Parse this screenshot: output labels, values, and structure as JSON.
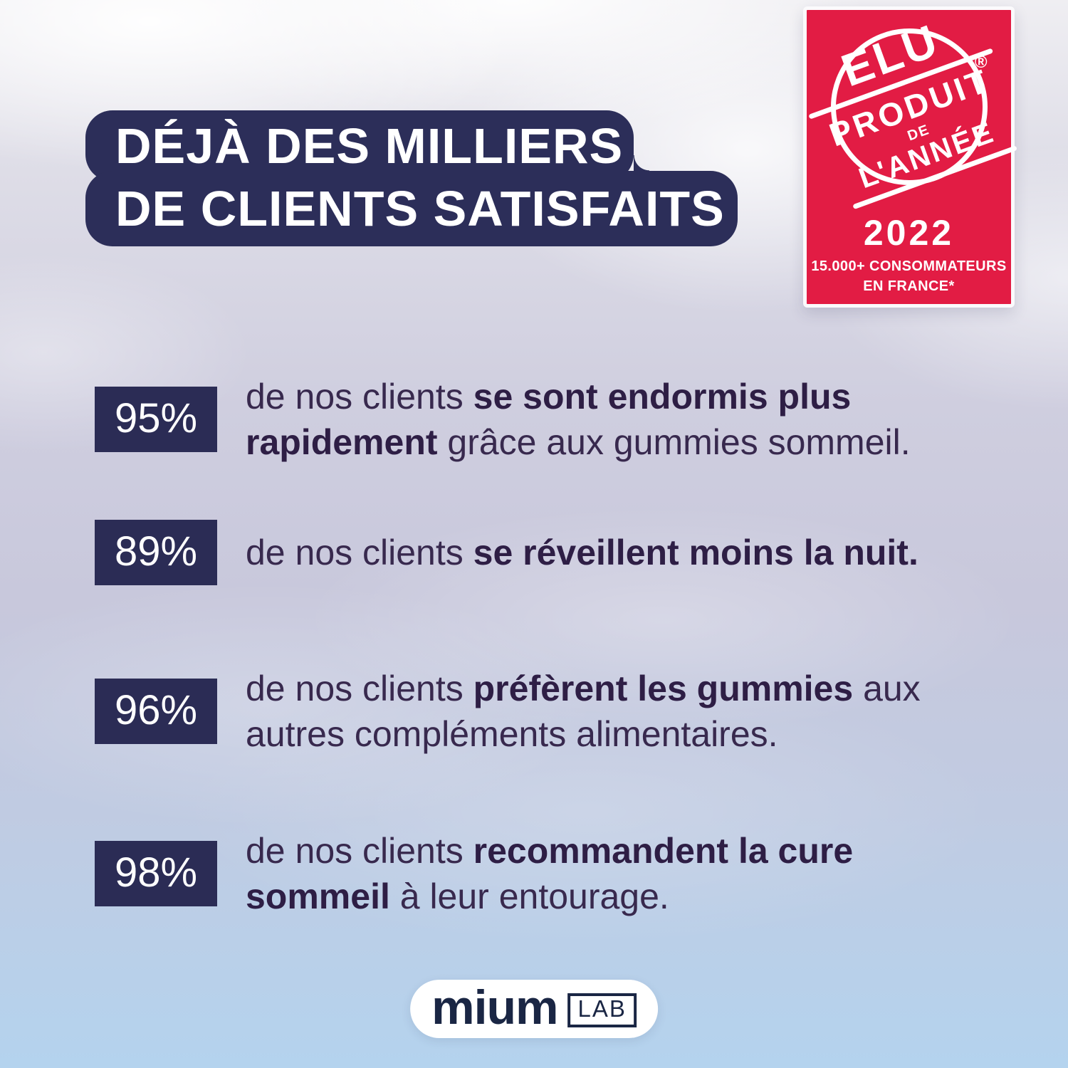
{
  "title": {
    "line1": "DÉJÀ DES MILLIERS",
    "line2": "DE CLIENTS SATISFAITS"
  },
  "award_badge": {
    "stamp": {
      "top": "ELU",
      "band_word": "PRODUIT",
      "middle": "DE",
      "bottom": "L'ANNÉE",
      "registered_mark": "®"
    },
    "year": "2022",
    "subtitle_line1": "15.000+ CONSOMMATEURS",
    "subtitle_line2": "EN FRANCE*"
  },
  "stats": [
    {
      "percent": "95%",
      "lines": [
        [
          {
            "t": "de nos clients ",
            "b": 0
          },
          {
            "t": "se sont endormis plus",
            "b": 1
          }
        ],
        [
          {
            "t": "rapidement",
            "b": 1
          },
          {
            "t": " grâce aux gummies sommeil.",
            "b": 0
          }
        ]
      ]
    },
    {
      "percent": "89%",
      "lines": [
        [
          {
            "t": "de nos clients ",
            "b": 0
          },
          {
            "t": "se réveillent moins la nuit.",
            "b": 1
          }
        ]
      ]
    },
    {
      "percent": "96%",
      "lines": [
        [
          {
            "t": "de nos clients ",
            "b": 0
          },
          {
            "t": "préfèrent les gummies",
            "b": 1
          },
          {
            "t": " aux",
            "b": 0
          }
        ],
        [
          {
            "t": "autres compléments alimentaires.",
            "b": 0
          }
        ]
      ]
    },
    {
      "percent": "98%",
      "lines": [
        [
          {
            "t": "de nos clients ",
            "b": 0
          },
          {
            "t": "recommandent la cure",
            "b": 1
          }
        ],
        [
          {
            "t": "sommeil",
            "b": 1
          },
          {
            "t": " à leur entourage.",
            "b": 0
          }
        ]
      ]
    }
  ],
  "logo": {
    "brand": "mium",
    "suffix": "LAB"
  },
  "colors": {
    "navy_box": "#2B2C55",
    "title_navy": "#2C2E59",
    "badge_red": "#E21C44",
    "stat_text_purple": "#38294E",
    "stat_text_bold_purple": "#2E1E45",
    "logo_navy": "#1A2644",
    "sky_top": "#EFEEF2",
    "sky_bottom": "#B4D3EE",
    "white": "#FFFFFF"
  }
}
